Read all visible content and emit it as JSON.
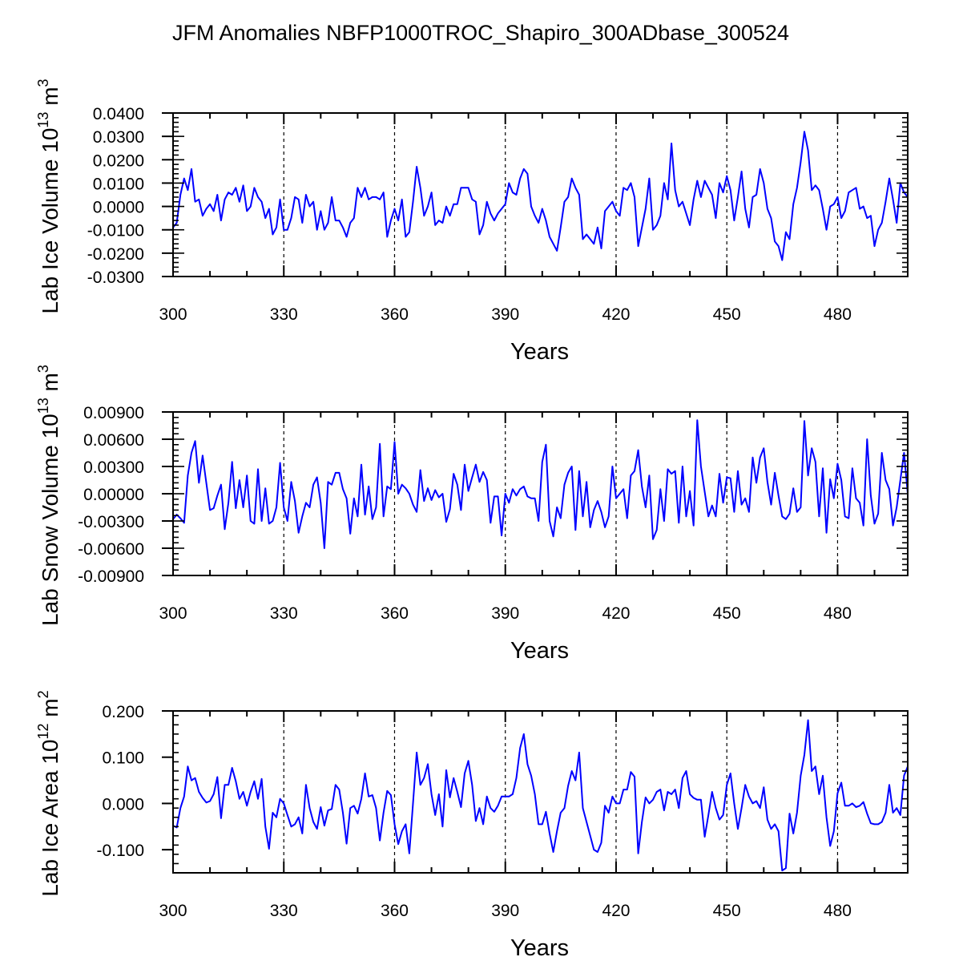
{
  "title": "JFM Anomalies NBFP1000TROC_Shapiro_300ADbase_300524",
  "colors": {
    "line": "#0000ff",
    "axis": "#000000",
    "grid": "#000000"
  },
  "chart_data": [
    {
      "type": "line",
      "xlabel": "Years",
      "ylabel_parts": {
        "prefix": "Lab Ice Volume 10",
        "exp": "13",
        "unit": " m",
        "unit_exp": "3"
      },
      "xlim": [
        300,
        499
      ],
      "ylim": [
        -0.03,
        0.04
      ],
      "xticks": [
        300,
        330,
        360,
        390,
        420,
        450,
        480
      ],
      "xtick_labels": [
        "300",
        "330",
        "360",
        "390",
        "420",
        "450",
        "480"
      ],
      "yticks": [
        -0.03,
        -0.02,
        -0.01,
        0.0,
        0.01,
        0.02,
        0.03,
        0.04
      ],
      "ytick_labels": [
        "-0.0300",
        "-0.0200",
        "-0.0100",
        "0.0000",
        "0.0100",
        "0.0200",
        "0.0300",
        "0.0400"
      ],
      "grid_x_dashed": [
        330,
        360,
        390,
        420,
        450,
        480
      ],
      "x_start": 300,
      "values": [
        -0.009,
        -0.007,
        0.005,
        0.012,
        0.007,
        0.016,
        0.002,
        0.003,
        -0.004,
        -0.001,
        0.001,
        -0.002,
        0.005,
        -0.006,
        0.003,
        0.006,
        0.005,
        0.008,
        0.002,
        0.009,
        -0.002,
        0.0,
        0.008,
        0.004,
        0.002,
        -0.005,
        -0.001,
        -0.012,
        -0.009,
        0.003,
        -0.01,
        -0.01,
        -0.005,
        0.004,
        0.003,
        -0.007,
        0.005,
        0.0,
        0.002,
        -0.01,
        -0.002,
        -0.01,
        -0.007,
        0.004,
        -0.006,
        -0.006,
        -0.009,
        -0.013,
        -0.007,
        -0.005,
        0.008,
        0.004,
        0.008,
        0.003,
        0.004,
        0.004,
        0.003,
        0.006,
        -0.013,
        -0.006,
        -0.001,
        -0.006,
        0.003,
        -0.013,
        -0.011,
        0.002,
        0.017,
        0.008,
        -0.004,
        0.0,
        0.006,
        -0.008,
        -0.006,
        -0.007,
        0.0,
        -0.004,
        0.001,
        0.001,
        0.008,
        0.008,
        0.008,
        0.003,
        0.002,
        -0.012,
        -0.008,
        0.002,
        -0.003,
        -0.006,
        -0.003,
        -0.001,
        0.001,
        0.01,
        0.006,
        0.005,
        0.012,
        0.016,
        0.014,
        0.0,
        -0.004,
        -0.007,
        -0.001,
        -0.006,
        -0.013,
        -0.016,
        -0.019,
        -0.009,
        0.002,
        0.004,
        0.012,
        0.008,
        0.005,
        -0.014,
        -0.012,
        -0.014,
        -0.016,
        -0.009,
        -0.018,
        -0.002,
        0.0,
        0.002,
        -0.002,
        -0.004,
        0.008,
        0.007,
        0.01,
        0.004,
        -0.017,
        -0.009,
        -0.001,
        0.012,
        -0.01,
        -0.008,
        -0.004,
        0.01,
        0.003,
        0.027,
        0.007,
        0.0,
        0.002,
        -0.003,
        -0.008,
        0.003,
        0.011,
        0.004,
        0.011,
        0.008,
        0.005,
        -0.005,
        0.01,
        0.006,
        0.013,
        0.007,
        -0.006,
        0.004,
        0.015,
        -0.001,
        -0.009,
        0.004,
        0.005,
        0.016,
        0.01,
        -0.001,
        -0.005,
        -0.015,
        -0.017,
        -0.023,
        -0.011,
        -0.014,
        0.001,
        0.008,
        0.019,
        0.032,
        0.024,
        0.007,
        0.009,
        0.007,
        -0.001,
        -0.01,
        0.0,
        0.001,
        0.004,
        -0.005,
        -0.002,
        0.006,
        0.007,
        0.008,
        -0.001,
        0.0,
        -0.005,
        -0.004,
        -0.017,
        -0.01,
        -0.007,
        0.002,
        0.012,
        0.003,
        -0.007,
        0.01,
        0.006,
        0.004
      ]
    },
    {
      "type": "line",
      "xlabel": "Years",
      "ylabel_parts": {
        "prefix": "Lab Snow Volume 10",
        "exp": "13",
        "unit": " m",
        "unit_exp": "3"
      },
      "xlim": [
        300,
        499
      ],
      "ylim": [
        -0.009,
        0.009
      ],
      "xticks": [
        300,
        330,
        360,
        390,
        420,
        450,
        480
      ],
      "xtick_labels": [
        "300",
        "330",
        "360",
        "390",
        "420",
        "450",
        "480"
      ],
      "yticks": [
        -0.009,
        -0.006,
        -0.003,
        0.0,
        0.003,
        0.006,
        0.009
      ],
      "ytick_labels": [
        "-0.00900",
        "-0.00600",
        "-0.00300",
        "0.00000",
        "0.00300",
        "0.00600",
        "0.00900"
      ],
      "grid_x_dashed": [
        330,
        360,
        390,
        420,
        450,
        480
      ],
      "x_start": 300,
      "values": [
        -0.0028,
        -0.0023,
        -0.0027,
        -0.0032,
        0.002,
        0.0045,
        0.0058,
        0.0012,
        0.0042,
        0.0012,
        -0.0018,
        -0.0016,
        -0.0002,
        0.001,
        -0.0039,
        -0.001,
        0.0035,
        -0.0016,
        0.0015,
        -0.0015,
        0.002,
        -0.003,
        -0.0033,
        0.0027,
        -0.003,
        0.0006,
        -0.0033,
        -0.003,
        -0.0015,
        0.0034,
        -0.0015,
        -0.003,
        0.0013,
        -0.0008,
        -0.0043,
        -0.0025,
        -0.001,
        -0.0015,
        0.001,
        0.0018,
        -0.001,
        -0.006,
        0.0013,
        0.001,
        0.0023,
        0.0023,
        0.0005,
        -0.0005,
        -0.0044,
        -0.0005,
        -0.0025,
        0.0032,
        -0.0023,
        0.0008,
        -0.0028,
        -0.0015,
        0.0055,
        -0.0025,
        0.0008,
        0.0005,
        0.0057,
        0.0,
        0.001,
        0.0006,
        0.0,
        -0.0012,
        -0.002,
        0.0026,
        -0.0008,
        0.0006,
        -0.0007,
        0.0004,
        -0.0004,
        0.0,
        -0.0031,
        -0.0017,
        0.0022,
        0.001,
        -0.0018,
        0.0032,
        0.0003,
        0.0018,
        0.0032,
        0.0013,
        0.0024,
        0.0015,
        -0.0032,
        -0.0003,
        -0.0003,
        -0.0046,
        0.0,
        -0.001,
        0.0005,
        -0.0002,
        0.0005,
        0.0008,
        -0.0003,
        -0.0005,
        -0.0005,
        -0.003,
        0.0035,
        0.0054,
        -0.003,
        -0.0047,
        -0.0015,
        -0.0027,
        0.001,
        0.0023,
        0.003,
        -0.004,
        0.0025,
        -0.0025,
        0.0013,
        -0.0037,
        -0.0018,
        -0.0008,
        -0.002,
        -0.0037,
        -0.0025,
        0.003,
        -0.0005,
        0.0,
        0.0005,
        -0.0027,
        0.002,
        0.0025,
        0.0048,
        0.0008,
        -0.0015,
        0.002,
        -0.005,
        -0.004,
        0.0005,
        -0.003,
        0.0027,
        0.0022,
        0.0025,
        -0.0032,
        0.003,
        -0.0025,
        0.0003,
        -0.0035,
        0.0081,
        0.003,
        0.0002,
        -0.0025,
        -0.0013,
        -0.0025,
        0.0022,
        -0.001,
        0.0018,
        0.0017,
        -0.002,
        0.0025,
        -0.0012,
        -0.0005,
        -0.002,
        0.004,
        0.0012,
        0.004,
        0.005,
        0.0013,
        -0.0012,
        0.0023,
        -0.0002,
        -0.0025,
        -0.0028,
        -0.0022,
        0.0006,
        -0.002,
        -0.0015,
        0.008,
        0.002,
        0.005,
        0.0035,
        -0.0025,
        0.0028,
        -0.0043,
        0.0016,
        -0.0005,
        0.0033,
        0.0015,
        -0.0025,
        -0.0027,
        0.0028,
        -0.0005,
        -0.001,
        -0.0035,
        0.006,
        -0.0002,
        -0.0033,
        -0.0022,
        0.0045,
        0.0015,
        0.0005,
        -0.0035,
        -0.0015,
        0.0015,
        0.0045,
        0.0
      ]
    },
    {
      "type": "line",
      "xlabel": "Years",
      "ylabel_parts": {
        "prefix": "Lab Ice Area 10",
        "exp": "12",
        "unit": " m",
        "unit_exp": "2"
      },
      "xlim": [
        300,
        499
      ],
      "ylim": [
        -0.15,
        0.2
      ],
      "xticks": [
        300,
        330,
        360,
        390,
        420,
        450,
        480
      ],
      "xtick_labels": [
        "300",
        "330",
        "360",
        "390",
        "420",
        "450",
        "480"
      ],
      "yticks": [
        -0.1,
        0.0,
        0.1,
        0.2
      ],
      "ytick_labels": [
        "-0.100",
        "0.000",
        "0.100",
        "0.200"
      ],
      "grid_x_dashed": [
        330,
        360,
        390,
        420,
        450,
        480
      ],
      "x_start": 300,
      "values": [
        -0.048,
        -0.052,
        -0.01,
        0.015,
        0.08,
        0.05,
        0.055,
        0.025,
        0.012,
        0.002,
        0.005,
        0.02,
        0.057,
        -0.032,
        0.04,
        0.04,
        0.077,
        0.048,
        0.01,
        0.025,
        -0.005,
        0.025,
        0.048,
        0.01,
        0.053,
        -0.05,
        -0.098,
        -0.02,
        -0.03,
        0.01,
        0.0,
        -0.025,
        -0.05,
        -0.045,
        -0.03,
        -0.065,
        0.04,
        -0.01,
        -0.04,
        -0.055,
        -0.008,
        -0.048,
        -0.015,
        -0.012,
        0.04,
        0.03,
        -0.02,
        -0.087,
        -0.01,
        -0.005,
        -0.022,
        0.01,
        0.065,
        0.015,
        0.018,
        -0.01,
        -0.08,
        -0.02,
        0.027,
        0.018,
        -0.045,
        -0.088,
        -0.06,
        -0.045,
        -0.108,
        0.0,
        0.11,
        0.04,
        0.055,
        0.085,
        0.02,
        -0.025,
        0.02,
        -0.05,
        0.072,
        0.013,
        0.055,
        0.025,
        -0.008,
        0.065,
        0.092,
        0.04,
        -0.038,
        -0.01,
        -0.045,
        0.015,
        -0.01,
        -0.018,
        -0.005,
        0.015,
        0.015,
        0.015,
        0.02,
        0.055,
        0.12,
        0.15,
        0.085,
        0.06,
        0.02,
        -0.045,
        -0.045,
        -0.018,
        -0.065,
        -0.105,
        -0.06,
        -0.02,
        -0.01,
        0.038,
        0.07,
        0.05,
        0.11,
        -0.01,
        -0.04,
        -0.07,
        -0.1,
        -0.105,
        -0.085,
        -0.005,
        -0.02,
        0.015,
        0.0,
        0.0,
        0.03,
        0.03,
        0.068,
        0.058,
        -0.108,
        -0.04,
        0.013,
        0.0,
        0.008,
        0.025,
        0.03,
        -0.015,
        0.025,
        0.02,
        0.03,
        -0.01,
        0.055,
        0.07,
        0.02,
        0.012,
        0.008,
        0.008,
        -0.072,
        -0.025,
        0.025,
        -0.01,
        -0.035,
        -0.025,
        0.04,
        0.065,
        0.0,
        -0.055,
        -0.01,
        0.04,
        0.015,
        0.0,
        0.005,
        -0.01,
        0.035,
        -0.035,
        -0.055,
        -0.045,
        -0.06,
        -0.145,
        -0.14,
        -0.022,
        -0.065,
        -0.02,
        0.06,
        0.105,
        0.18,
        0.07,
        0.08,
        0.02,
        0.06,
        -0.03,
        -0.092,
        -0.06,
        0.022,
        0.045,
        -0.005,
        -0.005,
        0.0,
        -0.008,
        -0.005,
        0.003,
        -0.022,
        -0.043,
        -0.045,
        -0.045,
        -0.04,
        -0.02,
        0.04,
        -0.02,
        -0.01,
        -0.025,
        0.06,
        0.08
      ]
    }
  ]
}
